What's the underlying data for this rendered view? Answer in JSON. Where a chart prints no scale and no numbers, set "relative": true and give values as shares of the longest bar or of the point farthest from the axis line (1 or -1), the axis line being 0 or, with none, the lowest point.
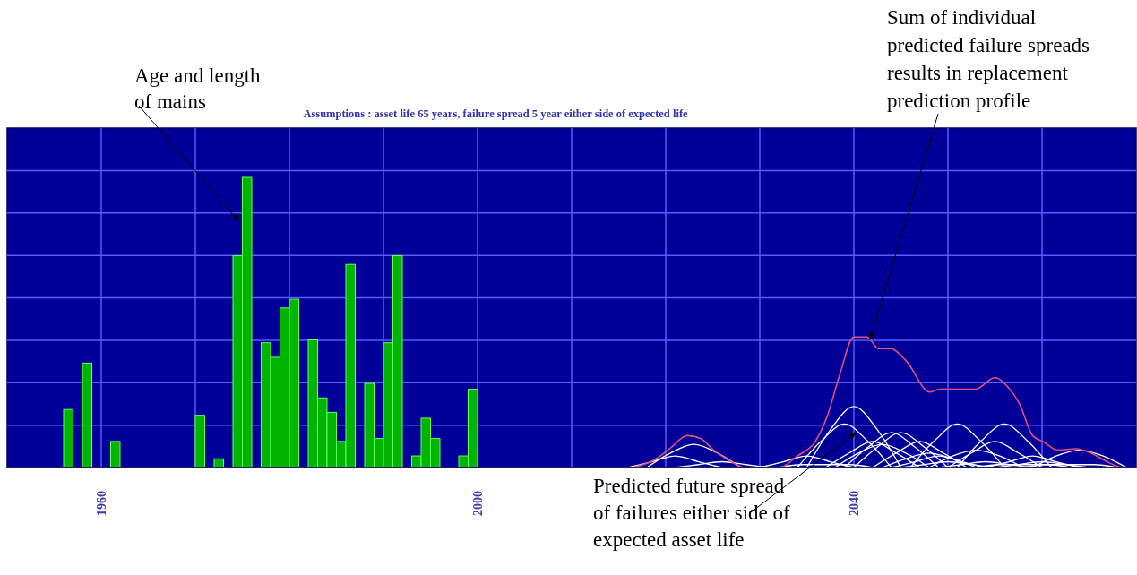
{
  "chart_data": {
    "type": "bar",
    "title": "Assumptions : asset life 65 years, failure spread 5 year either side of expected life",
    "relative": true,
    "grid": true,
    "xlim": [
      1950,
      2070
    ],
    "xticks": [
      1960,
      {
        "value": 1970,
        "label": null
      },
      {
        "value": 1980,
        "label": null
      },
      {
        "value": 1990,
        "label": null
      },
      2000,
      {
        "value": 2010,
        "label": null
      },
      {
        "value": 2020,
        "label": null
      },
      {
        "value": 2030,
        "label": null
      },
      2040,
      {
        "value": 2050,
        "label": null
      },
      {
        "value": 2060,
        "label": null
      }
    ],
    "annotations": [
      {
        "text": "Age and length of mains",
        "x": 1974.6,
        "y": 0.85
      },
      {
        "text": "Sum of individual predicted failure spreads results in replacement prediction profile",
        "x": 2041.7,
        "y": 0.44
      },
      {
        "text": "Predicted future spread of failures either side of expected asset life",
        "x": 2040.2,
        "y": 0.12
      }
    ],
    "series": [
      {
        "color": "#00b400",
        "x": [
          1956,
          1958,
          1961,
          1970,
          1972,
          1974,
          1975,
          1977,
          1978,
          1979,
          1980,
          1982,
          1983,
          1984,
          1985,
          1986,
          1988,
          1989,
          1990,
          1991,
          1993,
          1994,
          1995,
          1998,
          1999
        ],
        "values": [
          0.2,
          0.36,
          0.09,
          0.18,
          0.03,
          0.73,
          1,
          0.43,
          0.38,
          0.55,
          0.58,
          0.44,
          0.24,
          0.19,
          0.09,
          0.7,
          0.29,
          0.1,
          0.43,
          0.73,
          0.04,
          0.17,
          0.1,
          0.04,
          0.27
        ]
      },
      {
        "type": "line",
        "color": "#ffffff",
        "x": [
          2016,
          2018.5,
          2021,
          2023.5,
          2026
        ],
        "values": [
          0,
          0.02,
          0.04,
          0.02,
          0
        ]
      },
      {
        "type": "line",
        "color": "#ffffff",
        "x": [
          2018,
          2020.5,
          2023,
          2025.5,
          2028
        ],
        "values": [
          0,
          0.05,
          0.08,
          0.05,
          0
        ]
      },
      {
        "type": "line",
        "color": "#ffffff",
        "x": [
          2021,
          2023.5,
          2026,
          2028.5,
          2031
        ],
        "values": [
          0,
          0.01,
          0.02,
          0.01,
          0
        ]
      },
      {
        "type": "line",
        "color": "#ffffff",
        "x": [
          2030,
          2032.5,
          2035,
          2037.5,
          2040
        ],
        "values": [
          0,
          0.02,
          0.04,
          0.02,
          0
        ]
      },
      {
        "type": "line",
        "color": "#ffffff",
        "x": [
          2032,
          2034.5,
          2037,
          2039.5,
          2042
        ],
        "values": [
          0,
          0.01,
          0.01,
          0.01,
          0
        ]
      },
      {
        "type": "line",
        "color": "#ffffff",
        "x": [
          2034,
          2036.5,
          2039,
          2041.5,
          2044
        ],
        "values": [
          0,
          0.09,
          0.15,
          0.09,
          0
        ]
      },
      {
        "type": "line",
        "color": "#ffffff",
        "x": [
          2035,
          2037.5,
          2040,
          2042.5,
          2045
        ],
        "values": [
          0,
          0.13,
          0.21,
          0.13,
          0
        ]
      },
      {
        "type": "line",
        "color": "#ffffff",
        "x": [
          2037,
          2039.5,
          2042,
          2044.5,
          2047
        ],
        "values": [
          0,
          0.05,
          0.09,
          0.05,
          0
        ]
      },
      {
        "type": "line",
        "color": "#ffffff",
        "x": [
          2038,
          2040.5,
          2043,
          2045.5,
          2048
        ],
        "values": [
          0,
          0.05,
          0.08,
          0.05,
          0
        ]
      },
      {
        "type": "line",
        "color": "#ffffff",
        "x": [
          2039,
          2041.5,
          2044,
          2046.5,
          2049
        ],
        "values": [
          0,
          0.07,
          0.12,
          0.07,
          0
        ]
      },
      {
        "type": "line",
        "color": "#ffffff",
        "x": [
          2040,
          2042.5,
          2045,
          2047.5,
          2050
        ],
        "values": [
          0,
          0.07,
          0.12,
          0.07,
          0
        ]
      },
      {
        "type": "line",
        "color": "#ffffff",
        "x": [
          2042,
          2044.5,
          2047,
          2049.5,
          2052
        ],
        "values": [
          0,
          0.05,
          0.09,
          0.05,
          0
        ]
      },
      {
        "type": "line",
        "color": "#ffffff",
        "x": [
          2043,
          2045.5,
          2048,
          2050.5,
          2053
        ],
        "values": [
          0,
          0.03,
          0.05,
          0.03,
          0
        ]
      },
      {
        "type": "line",
        "color": "#ffffff",
        "x": [
          2044,
          2046.5,
          2049,
          2051.5,
          2054
        ],
        "values": [
          0,
          0.02,
          0.04,
          0.02,
          0
        ]
      },
      {
        "type": "line",
        "color": "#ffffff",
        "x": [
          2045,
          2047.5,
          2050,
          2052.5,
          2055
        ],
        "values": [
          0,
          0.01,
          0.02,
          0.01,
          0
        ]
      },
      {
        "type": "line",
        "color": "#ffffff",
        "x": [
          2046,
          2048.5,
          2051,
          2053.5,
          2056
        ],
        "values": [
          0,
          0.09,
          0.15,
          0.09,
          0
        ]
      },
      {
        "type": "line",
        "color": "#ffffff",
        "x": [
          2048,
          2050.5,
          2053,
          2055.5,
          2058
        ],
        "values": [
          0,
          0.04,
          0.06,
          0.04,
          0
        ]
      },
      {
        "type": "line",
        "color": "#ffffff",
        "x": [
          2049,
          2051.5,
          2054,
          2056.5,
          2059
        ],
        "values": [
          0,
          0.01,
          0.02,
          0.01,
          0
        ]
      },
      {
        "type": "line",
        "color": "#ffffff",
        "x": [
          2050,
          2052.5,
          2055,
          2057.5,
          2060
        ],
        "values": [
          0,
          0.05,
          0.09,
          0.05,
          0
        ]
      },
      {
        "type": "line",
        "color": "#ffffff",
        "x": [
          2051,
          2053.5,
          2056,
          2058.5,
          2061
        ],
        "values": [
          0,
          0.09,
          0.15,
          0.09,
          0
        ]
      },
      {
        "type": "line",
        "color": "#ffffff",
        "x": [
          2053,
          2055.5,
          2058,
          2060.5,
          2063
        ],
        "values": [
          0,
          0.01,
          0.01,
          0.01,
          0
        ]
      },
      {
        "type": "line",
        "color": "#ffffff",
        "x": [
          2054,
          2056.5,
          2059,
          2061.5,
          2064
        ],
        "values": [
          0,
          0.02,
          0.04,
          0.02,
          0
        ]
      },
      {
        "type": "line",
        "color": "#ffffff",
        "x": [
          2055,
          2057.5,
          2060,
          2062.5,
          2065
        ],
        "values": [
          0,
          0.01,
          0.02,
          0.01,
          0
        ]
      },
      {
        "type": "line",
        "color": "#ffffff",
        "x": [
          2058,
          2060.5,
          2063,
          2065.5,
          2068
        ],
        "values": [
          0,
          0.01,
          0.01,
          0.01,
          0
        ]
      },
      {
        "type": "line",
        "color": "#ffffff",
        "x": [
          2059,
          2061.5,
          2064,
          2066.5,
          2069
        ],
        "values": [
          0,
          0.04,
          0.06,
          0.04,
          0
        ]
      },
      {
        "type": "line",
        "color": "#e0507a",
        "x": [
          2016.5,
          2019,
          2020.6,
          2022.3,
          2023.7,
          2025.1,
          2027,
          2028.3,
          2032.1,
          2034,
          2035.9,
          2037.2,
          2038.5,
          2040,
          2041.4,
          2042.6,
          2043.9,
          2045.5,
          2048.1,
          2049.1,
          2050,
          2052.9,
          2055,
          2056.3,
          2057.6,
          2059,
          2060.1,
          2061.7,
          2063.6,
          2065.2,
          2067.2,
          2068.4
        ],
        "values": [
          0,
          0.03,
          0.07,
          0.11,
          0.1,
          0.06,
          0.02,
          0,
          0,
          0.04,
          0.09,
          0.18,
          0.32,
          0.45,
          0.45,
          0.41,
          0.41,
          0.37,
          0.26,
          0.27,
          0.27,
          0.27,
          0.31,
          0.28,
          0.22,
          0.11,
          0.09,
          0.06,
          0.065,
          0.05,
          0.015,
          0
        ]
      }
    ]
  }
}
